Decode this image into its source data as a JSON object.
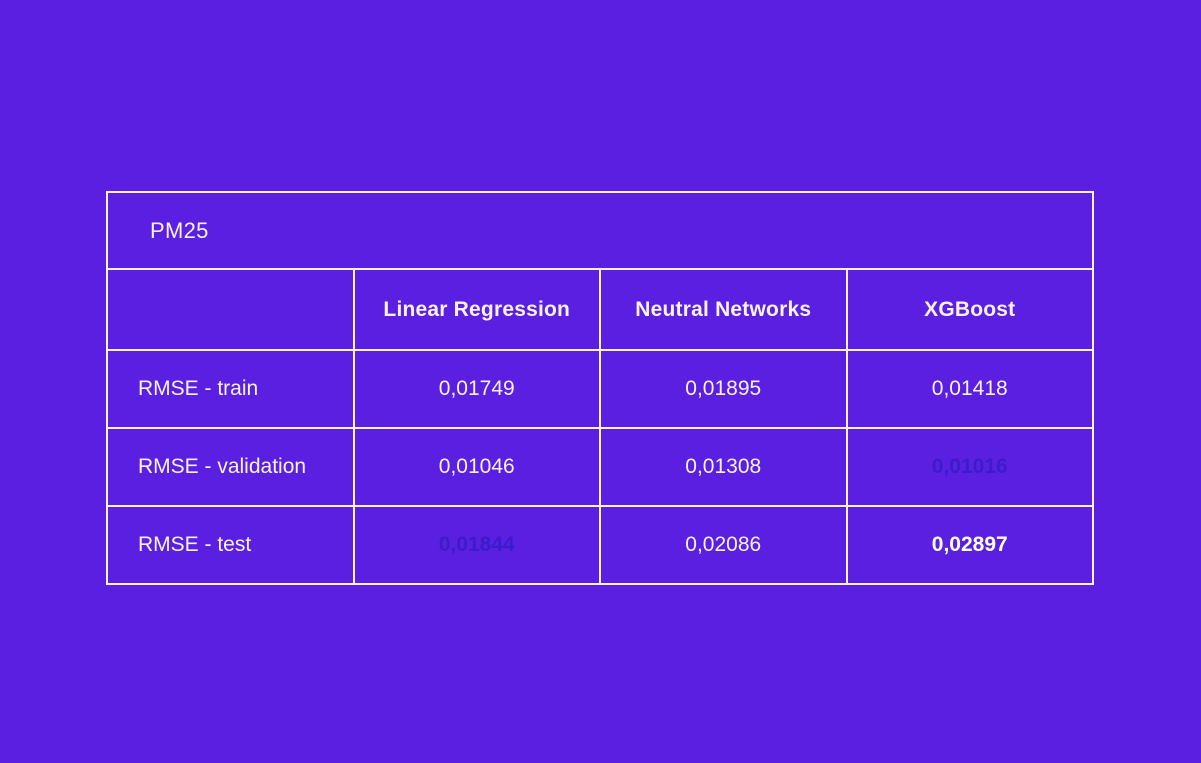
{
  "page": {
    "background_color": "#5a1fe0",
    "border_color": "#f7f2f0",
    "text_color": "#f7f2f0"
  },
  "chart_data": {
    "type": "table",
    "title": "PM25",
    "columns": [
      "",
      "Linear Regression",
      "Neutral Networks",
      "XGBoost"
    ],
    "metric": "RMSE",
    "rows": [
      {
        "label": "RMSE - train",
        "values": [
          "0,01749",
          "0,01895",
          "0,01418"
        ],
        "highlights": [
          "none",
          "none",
          "none"
        ]
      },
      {
        "label": "RMSE - validation",
        "values": [
          "0,01046",
          "0,01308",
          "0,01016"
        ],
        "highlights": [
          "none",
          "none",
          "best"
        ]
      },
      {
        "label": "RMSE - test",
        "values": [
          "0,01844",
          "0,02086",
          "0,02897"
        ],
        "highlights": [
          "best",
          "none",
          "worst"
        ]
      }
    ],
    "highlight_colors": {
      "best_background": "#21f9c2",
      "best_text": "#3b1ccd",
      "worst_background": "#dc3238",
      "worst_text": "#ffffff"
    },
    "decimal_separator": ","
  }
}
